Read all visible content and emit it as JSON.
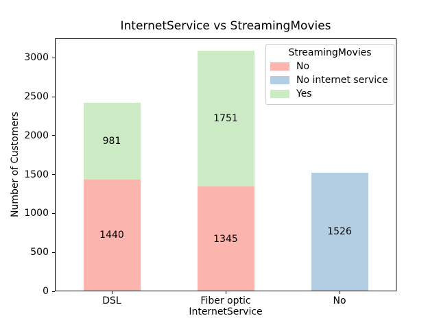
{
  "colors": {
    "series_no": "#fbb4ae",
    "series_no_internet": "#b3cde3",
    "series_yes": "#ccebc5",
    "axis": "#000000",
    "legend_border": "#cccccc",
    "background": "#ffffff"
  },
  "chart_data": {
    "type": "bar",
    "stacked": true,
    "title": "InternetService vs StreamingMovies",
    "xlabel": "InternetService",
    "ylabel": "Number of Customers",
    "categories": [
      "DSL",
      "Fiber optic",
      "No"
    ],
    "series": [
      {
        "name": "No",
        "color": "#fbb4ae",
        "values": [
          1440,
          1345,
          0
        ]
      },
      {
        "name": "No internet service",
        "color": "#b3cde3",
        "values": [
          0,
          0,
          1526
        ]
      },
      {
        "name": "Yes",
        "color": "#ccebc5",
        "values": [
          981,
          1751,
          0
        ]
      }
    ],
    "ylim": [
      0,
      3251
    ],
    "yticks": [
      0,
      500,
      1000,
      1500,
      2000,
      2500,
      3000
    ],
    "grid": false,
    "legend": {
      "title": "StreamingMovies",
      "position": "upper right"
    }
  }
}
